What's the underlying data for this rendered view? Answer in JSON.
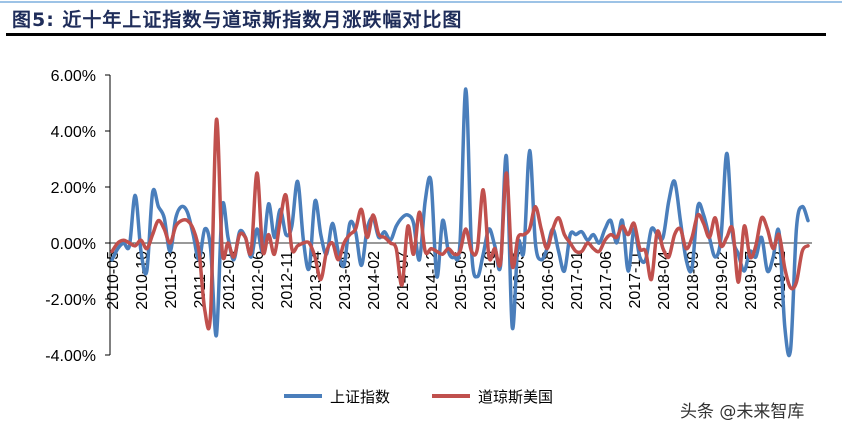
{
  "header": {
    "title": "图5:  近十年上证指数与道琼斯指数月涨跌幅对比图"
  },
  "watermark": "头条 @未来智库",
  "chart_data": {
    "type": "line",
    "title": "图5:  近十年上证指数与道琼斯指数月涨跌幅对比图",
    "xlabel": "",
    "ylabel": "",
    "ylim": [
      -4,
      6
    ],
    "y_ticks": [
      "6.00%",
      "4.00%",
      "2.00%",
      "0.00%",
      "-2.00%",
      "-4.00%"
    ],
    "y_tick_values": [
      6,
      4,
      2,
      0,
      -2,
      -4
    ],
    "y_unit": "%",
    "x_ticks": [
      "2010-05",
      "2010-10",
      "2011-03",
      "2011-08",
      "2012-01",
      "2012-06",
      "2012-11",
      "2013-04",
      "2013-09",
      "2014-02",
      "2014-07",
      "2014-12",
      "2015-05",
      "2015-10",
      "2016-03",
      "2016-08",
      "2017-01",
      "2017-06",
      "2017-11",
      "2018-04",
      "2018-09",
      "2019-02",
      "2019-07",
      "2019-12"
    ],
    "x": [
      "2010-05",
      "2010-06",
      "2010-07",
      "2010-08",
      "2010-09",
      "2010-10",
      "2010-11",
      "2010-12",
      "2011-01",
      "2011-02",
      "2011-03",
      "2011-04",
      "2011-05",
      "2011-06",
      "2011-07",
      "2011-08",
      "2011-09",
      "2011-10",
      "2011-11",
      "2011-12",
      "2012-01",
      "2012-02",
      "2012-03",
      "2012-04",
      "2012-05",
      "2012-06",
      "2012-07",
      "2012-08",
      "2012-09",
      "2012-10",
      "2012-11",
      "2012-12",
      "2013-01",
      "2013-02",
      "2013-03",
      "2013-04",
      "2013-05",
      "2013-06",
      "2013-07",
      "2013-08",
      "2013-09",
      "2013-10",
      "2013-11",
      "2013-12",
      "2014-01",
      "2014-02",
      "2014-03",
      "2014-04",
      "2014-05",
      "2014-06",
      "2014-07",
      "2014-08",
      "2014-09",
      "2014-10",
      "2014-11",
      "2014-12",
      "2015-01",
      "2015-02",
      "2015-03",
      "2015-04",
      "2015-05",
      "2015-06",
      "2015-07",
      "2015-08",
      "2015-09",
      "2015-10",
      "2015-11",
      "2015-12",
      "2016-01",
      "2016-02",
      "2016-03",
      "2016-04",
      "2016-05",
      "2016-06",
      "2016-07",
      "2016-08",
      "2016-09",
      "2016-10",
      "2016-11",
      "2016-12",
      "2017-01",
      "2017-02",
      "2017-03",
      "2017-04",
      "2017-05",
      "2017-06",
      "2017-07",
      "2017-08",
      "2017-09",
      "2017-10",
      "2017-11",
      "2017-12",
      "2018-01",
      "2018-02",
      "2018-03",
      "2018-04",
      "2018-05",
      "2018-06",
      "2018-07",
      "2018-08",
      "2018-09",
      "2018-10",
      "2018-11",
      "2018-12",
      "2019-01",
      "2019-02",
      "2019-03",
      "2019-04",
      "2019-05",
      "2019-06",
      "2019-07",
      "2019-08",
      "2019-09",
      "2019-10",
      "2019-11",
      "2019-12",
      "2020-01",
      "2020-02",
      "2020-03",
      "2020-04",
      "2020-05"
    ],
    "grid": false,
    "legend_position": "bottom",
    "series": [
      {
        "name": "上证指数",
        "color": "#4a7ebb",
        "values": [
          -0.6,
          -0.2,
          0,
          -0.1,
          1.7,
          -0.3,
          -1.0,
          1.8,
          1.3,
          0.9,
          -0.3,
          0.9,
          1.3,
          1.1,
          0.3,
          -0.6,
          0.5,
          -0.2,
          -3.3,
          1.3,
          0.2,
          -0.6,
          0.4,
          0.2,
          -0.5,
          0.5,
          -0.3,
          1.4,
          0.2,
          1.2,
          0.3,
          0.6,
          2.2,
          0.1,
          -0.9,
          1.5,
          0.3,
          -0.4,
          0.7,
          -0.3,
          -0.8,
          0.7,
          0.4,
          -0.8,
          0.5,
          0.9,
          0.2,
          0.4,
          0.1,
          0.6,
          0.9,
          1.0,
          0.7,
          -0.6,
          1.5,
          2.2,
          -1.2,
          0.8,
          -0.3,
          -0.5,
          0,
          5.5,
          -0.3,
          -1.2,
          -0.4,
          0.5,
          -0.1,
          -0.8,
          3.1,
          -3.0,
          0,
          -0.3,
          3.3,
          0,
          -0.6,
          -0.2,
          0.5,
          -0.3,
          -1.0,
          0.3,
          0.3,
          0.4,
          0.1,
          0.3,
          0,
          0.5,
          0.8,
          0,
          0.8,
          -1.0,
          0.5,
          -0.5,
          -0.6,
          0.5,
          0.3,
          0.2,
          1.5,
          2.2,
          0.8,
          -0.6,
          -0.9,
          1.3,
          1.0,
          0.2,
          -0.5,
          0.2,
          3.2,
          0.3,
          -0.4,
          -1.0,
          -0.3,
          -0.5,
          0.2,
          -1.0,
          -0.5,
          0.4,
          -3.0,
          -3.8,
          0.5,
          1.3,
          0.8
        ]
      },
      {
        "name": "道琼斯美国",
        "color": "#c0504d",
        "values": [
          -0.3,
          0,
          0.1,
          0,
          -0.1,
          0.1,
          -0.2,
          0.3,
          0.8,
          0.5,
          0,
          0.6,
          0.8,
          0.8,
          0.5,
          -0.3,
          -2.4,
          -2.5,
          4.4,
          -0.3,
          0,
          -0.5,
          0.3,
          0.2,
          -0.3,
          2.5,
          -0.3,
          0.3,
          -0.4,
          0.8,
          1.7,
          -0.2,
          -0.1,
          0,
          0,
          -0.5,
          -1.3,
          -0.3,
          0,
          -0.6,
          0,
          0.3,
          0.5,
          1.2,
          0.2,
          1.0,
          0.3,
          0.2,
          0,
          -0.2,
          -1.5,
          0.6,
          -0.4,
          1.1,
          -0.3,
          -0.2,
          -0.3,
          -0.4,
          -0.2,
          -0.4,
          -0.3,
          0.5,
          -0.3,
          -0.2,
          1.9,
          -0.5,
          -0.2,
          -0.7,
          2.5,
          -0.8,
          0.2,
          0.3,
          0.5,
          1.3,
          0.5,
          -0.2,
          0.5,
          0.9,
          0.3,
          0,
          -0.3,
          -0.3,
          0,
          -0.2,
          -0.3,
          0.1,
          0.3,
          0.2,
          0.6,
          0.3,
          0.7,
          -0.2,
          -0.3,
          -1.3,
          0.4,
          -0.2,
          -0.5,
          0.3,
          0.5,
          -0.2,
          0.2,
          1.0,
          0.7,
          0.2,
          0.9,
          -0.1,
          0.2,
          0.5,
          -1.4,
          0.6,
          -0.5,
          -0.1,
          0.9,
          0.5,
          -0.2,
          0.3,
          -0.9,
          -1.6,
          -1.4,
          -0.3,
          -0.1
        ]
      }
    ]
  }
}
